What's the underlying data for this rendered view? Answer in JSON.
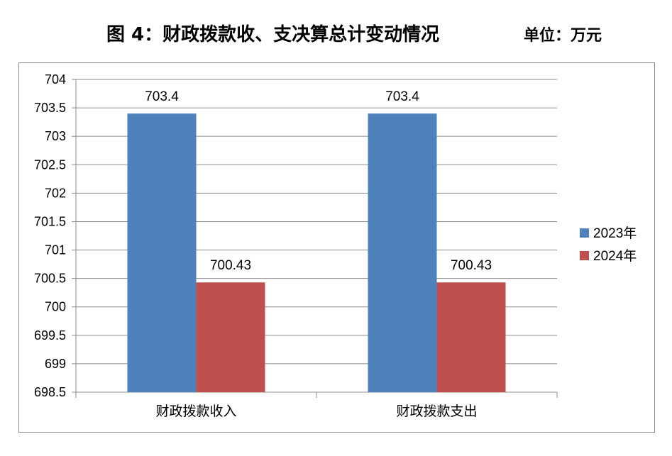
{
  "header": {
    "title": "图 4：财政拨款收、支决算总计变动情况",
    "unit": "单位：万元"
  },
  "chart_data": {
    "type": "bar",
    "title": "图 4：财政拨款收、支决算总计变动情况",
    "categories": [
      "财政拨款收入",
      "财政拨款支出"
    ],
    "series": [
      {
        "name": "2023年",
        "values": [
          703.4,
          703.4
        ],
        "labels": [
          "703.4",
          "703.4"
        ],
        "color": "#4f81bd"
      },
      {
        "name": "2024年",
        "values": [
          700.43,
          700.43
        ],
        "labels": [
          "700.43",
          "700.43"
        ],
        "color": "#c0504d"
      }
    ],
    "ylim": [
      698.5,
      704
    ],
    "yticks": [
      "698.5",
      "699",
      "699.5",
      "700",
      "700.5",
      "701",
      "701.5",
      "702",
      "702.5",
      "703",
      "703.5",
      "704"
    ],
    "grid": true,
    "legend_position": "right",
    "gridline_color": "#8c8c8c",
    "axis_color": "#8c8c8c"
  }
}
